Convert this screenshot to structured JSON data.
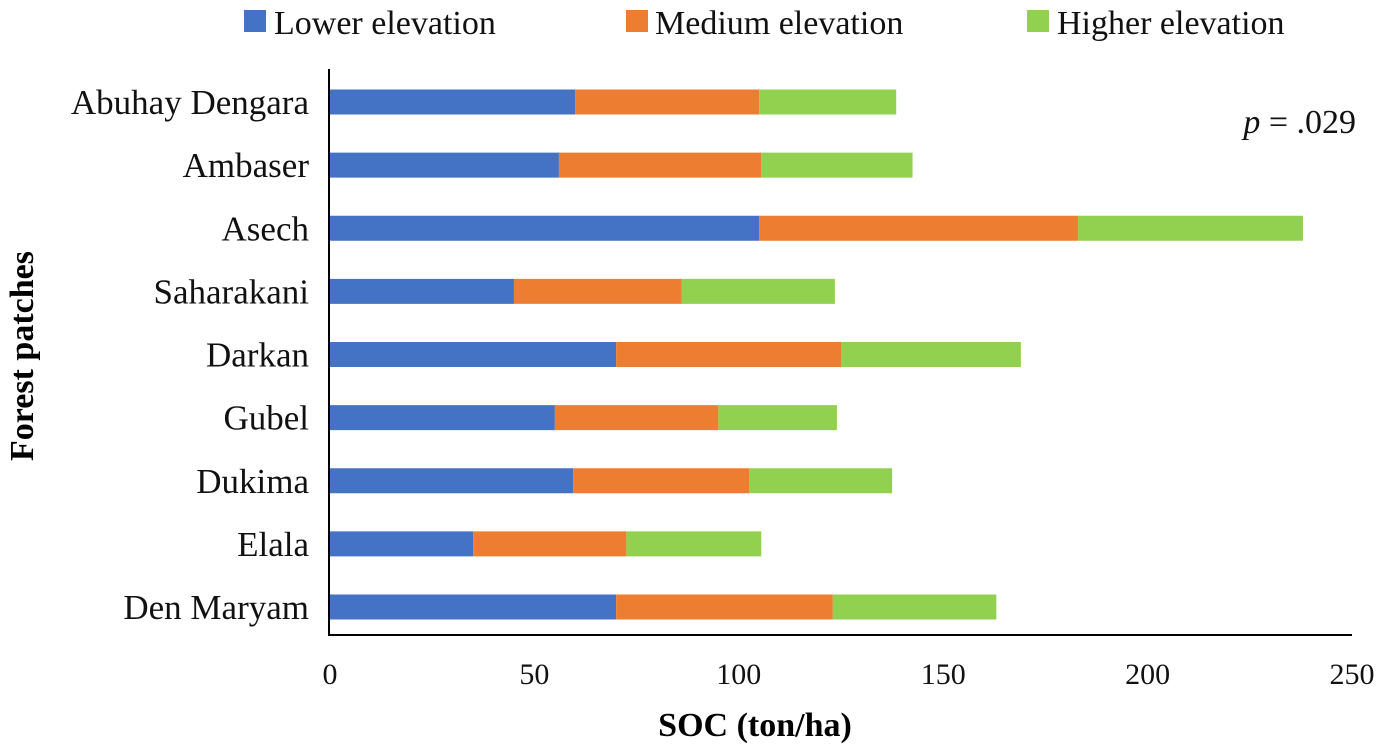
{
  "chart_data": {
    "type": "bar",
    "orientation": "horizontal",
    "stacked": true,
    "title": "",
    "xlabel": "SOC (ton/ha)",
    "ylabel": "Forest patches",
    "xlim": [
      0,
      250
    ],
    "xticks": [
      0,
      50,
      100,
      150,
      200,
      250
    ],
    "grid": false,
    "legend_position": "top",
    "categories": [
      "Abuhay Dengara",
      "Ambaser",
      "Asech",
      "Saharakani",
      "Darkan",
      "Gubel",
      "Dukima",
      "Elala",
      "Den Maryam"
    ],
    "series": [
      {
        "name": "Lower elevation",
        "color": "#4472C4",
        "values": [
          60,
          56,
          105,
          45,
          70,
          55,
          59.5,
          35,
          70
        ]
      },
      {
        "name": "Medium elevation",
        "color": "#ED7D31",
        "values": [
          45,
          49.5,
          78,
          41,
          55,
          40,
          43,
          37.5,
          53
        ]
      },
      {
        "name": "Higher elevation",
        "color": "#92D050",
        "values": [
          33.5,
          37,
          55,
          37.5,
          44,
          29,
          35,
          33,
          40
        ]
      }
    ],
    "annotation": {
      "italic_part": "p",
      "rest": " = .029"
    }
  }
}
